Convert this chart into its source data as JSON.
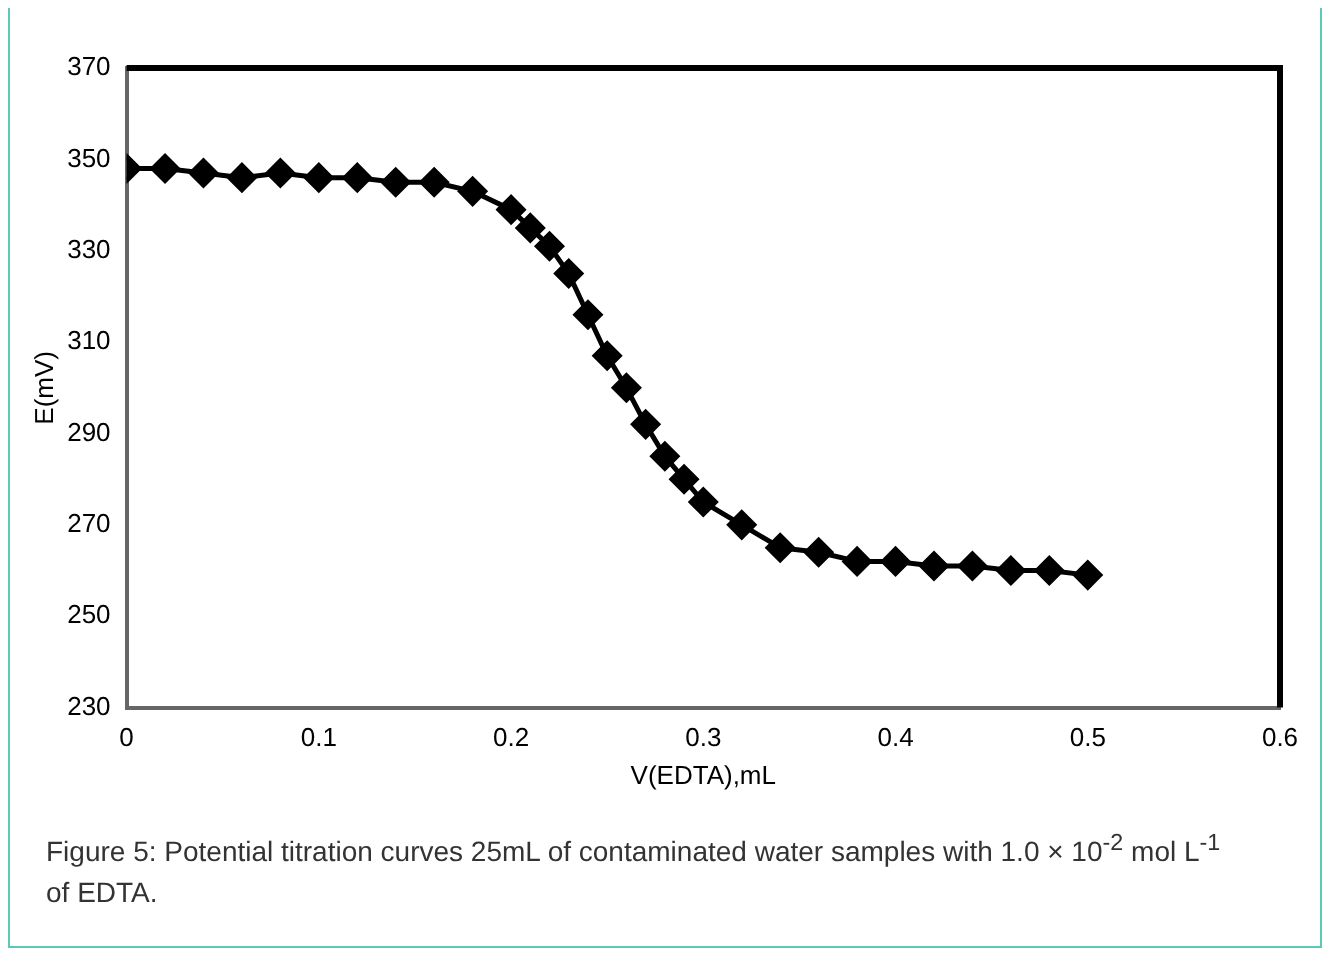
{
  "chart_data": {
    "type": "line",
    "xlabel": "V(EDTA),mL",
    "ylabel": "E(mV)",
    "x": [
      0,
      0.02,
      0.04,
      0.06,
      0.08,
      0.1,
      0.12,
      0.14,
      0.16,
      0.18,
      0.2,
      0.21,
      0.22,
      0.23,
      0.24,
      0.25,
      0.26,
      0.27,
      0.28,
      0.29,
      0.3,
      0.32,
      0.34,
      0.36,
      0.38,
      0.4,
      0.42,
      0.44,
      0.46,
      0.48,
      0.5
    ],
    "series": [
      {
        "color": "#000000",
        "values": [
          348,
          348,
          347,
          346,
          347,
          346,
          346,
          345,
          345,
          343,
          339,
          335,
          331,
          325,
          316,
          307,
          300,
          292,
          285,
          280,
          275,
          270,
          265,
          264,
          262,
          262,
          261,
          261,
          260,
          260,
          259
        ]
      }
    ],
    "xlim": [
      0,
      0.6
    ],
    "xticks": [
      0,
      0.1,
      0.2,
      0.3,
      0.4,
      0.5,
      0.6
    ],
    "ylim": [
      230,
      370
    ],
    "yticks": [
      230,
      250,
      270,
      290,
      310,
      330,
      350,
      370
    ],
    "grid": false,
    "legend": false,
    "marker": "diamond",
    "line_style": "solid",
    "annotations": [
      "Figure 5: Potential titration curves 25mL of contaminated water samples with 1.0 × 10$^{-2}$ mol L$^{-1}$ of EDTA."
    ]
  }
}
